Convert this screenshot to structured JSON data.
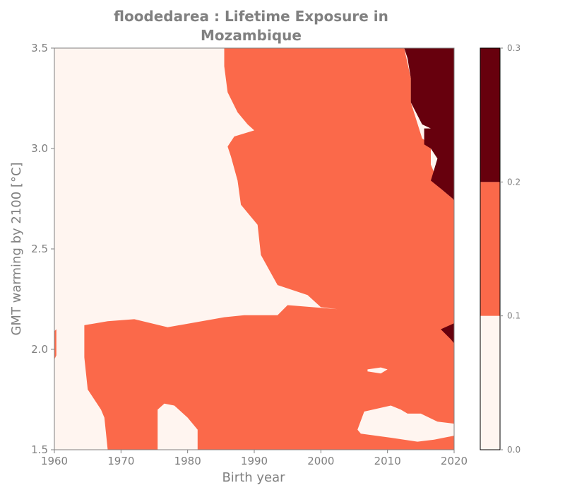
{
  "chart_data": {
    "type": "contourf",
    "title_lines": [
      "floodedarea : Lifetime Exposure in",
      "Mozambique"
    ],
    "xlabel": "Birth year",
    "ylabel": "GMT warming by 2100 [°C]",
    "xlim": [
      1960,
      2020
    ],
    "ylim": [
      1.5,
      3.5
    ],
    "xticks": [
      "1960",
      "1970",
      "1980",
      "1990",
      "2000",
      "2010",
      "2020"
    ],
    "yticks": [
      "1.5",
      "2.0",
      "2.5",
      "3.0",
      "3.5"
    ],
    "colorbar": {
      "ticks": [
        "0.0",
        "0.1",
        "0.2",
        "0.3"
      ],
      "levels": [
        0.0,
        0.1,
        0.2,
        0.3
      ],
      "colors": [
        "#fff5f0",
        "#fb694a",
        "#67000d"
      ]
    },
    "regions": [
      {
        "name": "exposure-0.1-0.2",
        "level_index": 1,
        "polygons": [
          [
            [
              1985.5,
              3.5
            ],
            [
              2012.5,
              3.5
            ],
            [
              2013.5,
              3.35
            ],
            [
              2013.5,
              3.23
            ],
            [
              2015.2,
              3.05
            ],
            [
              2016.5,
              3.02
            ],
            [
              2016.5,
              2.92
            ],
            [
              2018.0,
              2.8
            ],
            [
              2019.8,
              2.75
            ],
            [
              2020,
              2.74
            ],
            [
              2020,
              2.08
            ],
            [
              2017.5,
              2.12
            ],
            [
              2018.5,
              2.18
            ],
            [
              2020,
              2.2
            ],
            [
              2020,
              1.63
            ],
            [
              2017.5,
              1.64
            ],
            [
              2015.0,
              1.68
            ],
            [
              2013.0,
              1.68
            ],
            [
              2012.0,
              1.7
            ],
            [
              2010.5,
              1.72
            ],
            [
              2006.5,
              1.69
            ],
            [
              2005.5,
              1.6
            ],
            [
              2006.0,
              1.58
            ],
            [
              2010.5,
              1.56
            ],
            [
              2014.5,
              1.54
            ],
            [
              2017.0,
              1.55
            ],
            [
              2020,
              1.57
            ],
            [
              2020,
              1.5
            ],
            [
              1981.5,
              1.5
            ],
            [
              1981.5,
              1.6
            ],
            [
              1980.0,
              1.66
            ],
            [
              1978.0,
              1.72
            ],
            [
              1976.5,
              1.73
            ],
            [
              1975.5,
              1.7
            ],
            [
              1975.5,
              1.5
            ],
            [
              1968.0,
              1.5
            ],
            [
              1967.5,
              1.66
            ],
            [
              1967.0,
              1.7
            ],
            [
              1965.0,
              1.8
            ],
            [
              1964.5,
              1.96
            ],
            [
              1964.5,
              2.12
            ],
            [
              1968.0,
              2.14
            ],
            [
              1972.0,
              2.15
            ],
            [
              1977.0,
              2.11
            ],
            [
              1985.5,
              2.16
            ],
            [
              1988.5,
              2.17
            ],
            [
              1993.5,
              2.17
            ],
            [
              1995.0,
              2.22
            ],
            [
              2002.5,
              2.2
            ],
            [
              2000.0,
              2.21
            ],
            [
              1998.0,
              2.27
            ],
            [
              1993.5,
              2.32
            ],
            [
              1991.0,
              2.47
            ],
            [
              1990.5,
              2.62
            ],
            [
              1988.0,
              2.72
            ],
            [
              1987.5,
              2.84
            ],
            [
              1986.5,
              2.96
            ],
            [
              1986.0,
              3.01
            ],
            [
              1987.0,
              3.06
            ],
            [
              1990.0,
              3.09
            ],
            [
              1989.0,
              3.12
            ],
            [
              1987.5,
              3.18
            ],
            [
              1986.0,
              3.28
            ],
            [
              1985.5,
              3.41
            ]
          ],
          [
            [
              1960,
              2.09
            ],
            [
              1960.3,
              2.1
            ],
            [
              1960.3,
              1.97
            ],
            [
              1960,
              1.95
            ]
          ]
        ]
      },
      {
        "name": "exposure-0.2-0.3",
        "level_index": 2,
        "polygons": [
          [
            [
              2012.5,
              3.5
            ],
            [
              2020,
              3.5
            ],
            [
              2020,
              2.74
            ],
            [
              2019.8,
              2.75
            ],
            [
              2018.0,
              2.8
            ],
            [
              2016.5,
              2.84
            ],
            [
              2017.5,
              2.95
            ],
            [
              2016.5,
              3.0
            ],
            [
              2015.5,
              3.02
            ],
            [
              2015.5,
              3.1
            ],
            [
              2016.5,
              3.1
            ],
            [
              2015.2,
              3.12
            ],
            [
              2013.5,
              3.23
            ],
            [
              2013.5,
              3.35
            ],
            [
              2013.0,
              3.45
            ]
          ],
          [
            [
              2020,
              2.13
            ],
            [
              2018.0,
              2.1
            ],
            [
              2019.5,
              2.05
            ],
            [
              2020,
              2.03
            ]
          ]
        ]
      },
      {
        "name": "exposure-0.0-0.1-hole",
        "level_index": 0,
        "polygons": [
          [
            [
              2007.0,
              1.89
            ],
            [
              2009.0,
              1.88
            ],
            [
              2010.0,
              1.9
            ],
            [
              2009.0,
              1.91
            ],
            [
              2007.0,
              1.9
            ]
          ]
        ]
      }
    ]
  }
}
